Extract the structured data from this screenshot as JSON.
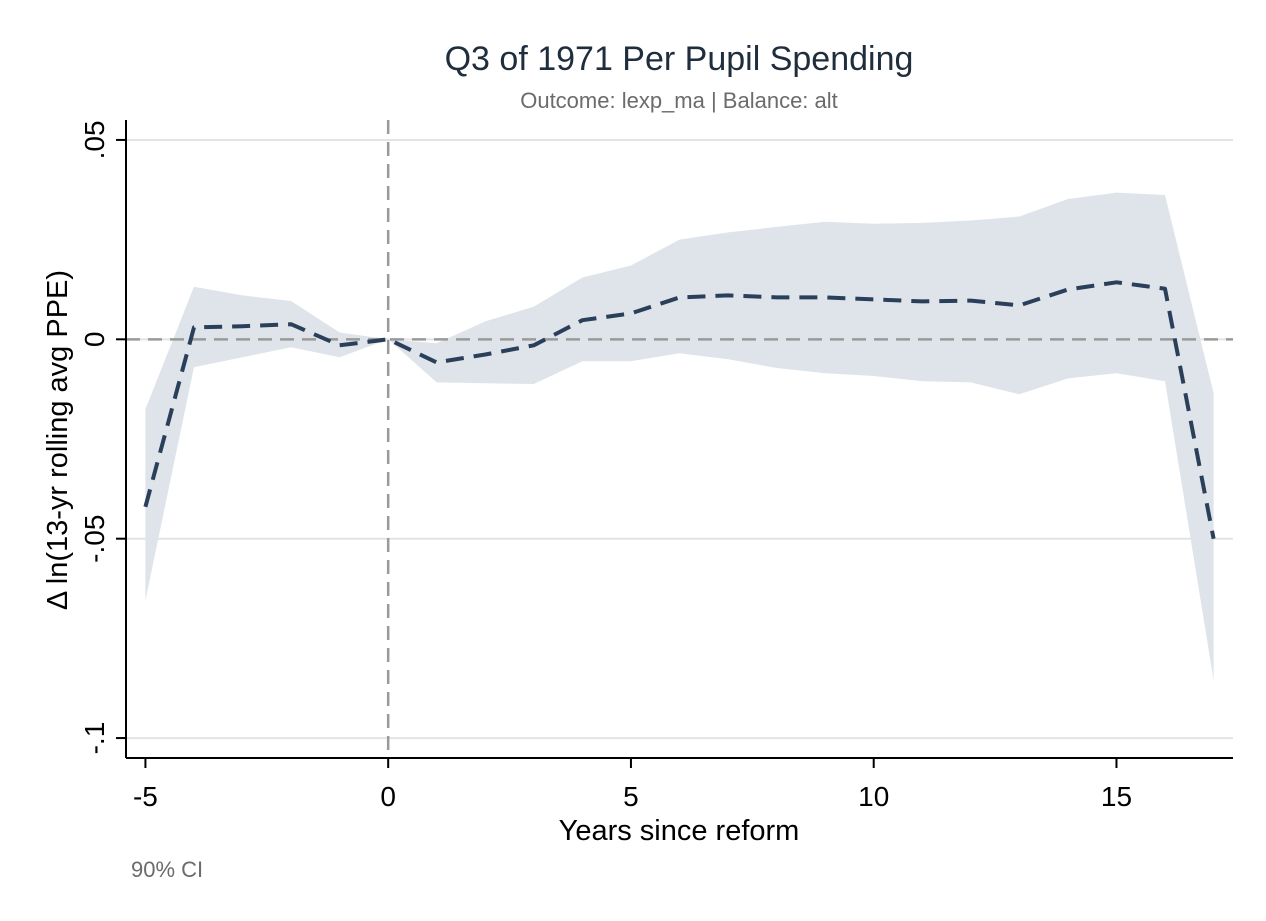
{
  "chart_data": {
    "type": "line",
    "title": "Q3 of 1971 Per Pupil Spending",
    "subtitle": "Outcome: lexp_ma | Balance: alt",
    "xlabel": "Years since reform",
    "ylabel": "Δ ln(13-yr rolling avg PPE)",
    "note": "90% CI",
    "xlim": [
      -5.4,
      17.4
    ],
    "ylim": [
      -0.105,
      0.055
    ],
    "x_ticks": [
      {
        "value": -5,
        "label": "-5"
      },
      {
        "value": 0,
        "label": "0"
      },
      {
        "value": 5,
        "label": "5"
      },
      {
        "value": 10,
        "label": "10"
      },
      {
        "value": 15,
        "label": "15"
      }
    ],
    "y_ticks": [
      {
        "value": 0.05,
        "label": ".05"
      },
      {
        "value": 0,
        "label": "0"
      },
      {
        "value": -0.05,
        "label": "-.05"
      },
      {
        "value": -0.1,
        "label": "-.1"
      }
    ],
    "grid": "horizontal",
    "reference_lines": {
      "x": 0,
      "y": 0
    },
    "series": [
      {
        "x": [
          -5,
          -4,
          -3,
          -2,
          -1,
          0,
          1,
          2,
          3,
          4,
          5,
          6,
          7,
          8,
          9,
          10,
          11,
          12,
          13,
          14,
          15,
          16,
          17
        ],
        "values": [
          -0.042,
          0.003,
          0.0033,
          0.0038,
          -0.0015,
          0.0,
          -0.0058,
          -0.0038,
          -0.0015,
          0.0048,
          0.0065,
          0.0105,
          0.011,
          0.0105,
          0.0105,
          0.01,
          0.0095,
          0.0097,
          0.0085,
          0.0125,
          0.0143,
          0.0127,
          -0.05
        ],
        "ci_lower": [
          -0.0655,
          -0.007,
          -0.0045,
          -0.002,
          -0.0045,
          0.0,
          -0.0108,
          -0.011,
          -0.0112,
          -0.0055,
          -0.0055,
          -0.0035,
          -0.005,
          -0.0072,
          -0.0085,
          -0.0092,
          -0.0105,
          -0.0108,
          -0.0138,
          -0.0098,
          -0.0085,
          -0.0105,
          -0.0855
        ],
        "ci_upper": [
          -0.0175,
          0.0132,
          0.011,
          0.0096,
          0.0017,
          0.0,
          -0.001,
          0.0045,
          0.0082,
          0.0155,
          0.0185,
          0.025,
          0.0268,
          0.0282,
          0.0295,
          0.029,
          0.0292,
          0.0298,
          0.0308,
          0.0352,
          0.0368,
          0.0362,
          -0.0135
        ]
      }
    ],
    "colors": {
      "line": "#2a3f5a",
      "ci_band": "#dfe4ea",
      "grid": "#e3e3e3",
      "reference": "#9a9a9a",
      "axis": "#000000"
    }
  }
}
